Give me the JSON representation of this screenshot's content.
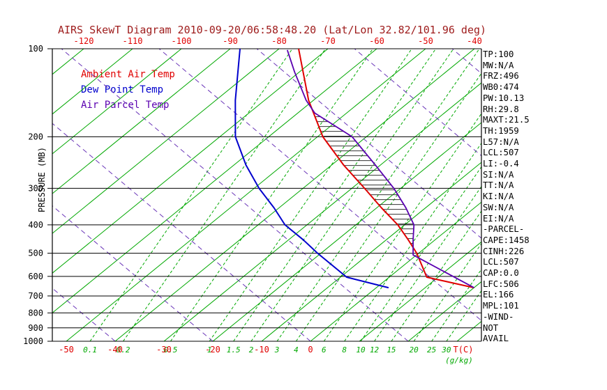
{
  "title": "AIRS SkewT Diagram 2010-09-20/06:58:48.20 (Lat/Lon 32.82/101.96 deg)",
  "colors": {
    "title": "#9e1b1b",
    "red": "#e00000",
    "green": "#00a800",
    "blue": "#0000cd",
    "purple": "#5a00b0",
    "purple_dashed": "#6a35b8",
    "hatch": "#333333",
    "black": "#000000"
  },
  "legend": {
    "ambient": "Ambient Air Temp",
    "dewpoint": "Dew Point Temp",
    "parcel": "Air Parcel Temp"
  },
  "axes": {
    "pressure_label": "PRESSURE (MB)",
    "pressure_ticks": [
      100,
      200,
      300,
      400,
      500,
      600,
      700,
      800,
      900,
      1000
    ],
    "top_temp_ticks": [
      -120,
      -110,
      -100,
      -90,
      -80,
      -70,
      -60,
      -50,
      -40
    ],
    "bottom_temp_ticks": [
      -50,
      -40,
      -30,
      -20,
      -10,
      0
    ],
    "temp_unit": "T(C)",
    "mixing_unit": "(g/kg)"
  },
  "stats": [
    "TP:100",
    "MW:N/A",
    "FRZ:496",
    "WB0:474",
    "PW:10.13",
    "RH:29.8",
    "MAXT:21.5",
    "TH:1959",
    "L57:N/A",
    "LCL:507",
    "LI:-0.4",
    "SI:N/A",
    "TT:N/A",
    "KI:N/A",
    "SW:N/A",
    "EI:N/A",
    "-PARCEL-",
    "CAPE:1458",
    "CINH:226",
    "LCL:507",
    "CAP:0.0",
    "LFC:506",
    "EL:166",
    "MPL:101",
    "-WIND-",
    "NOT",
    "AVAIL"
  ],
  "chart_data": {
    "type": "line",
    "x_axis": "Temperature (C), skewed isotherms",
    "y_axis": "Pressure (MB), log scale",
    "pressure_range_mb": [
      100,
      1000
    ],
    "top_axis_temp_range_c": [
      -120,
      -40
    ],
    "isotherms_c": {
      "min": -120,
      "max": 30,
      "step": 10
    },
    "mixing_ratio_lines_gkg": [
      0.1,
      0.2,
      0.5,
      1,
      1.5,
      2,
      3,
      4,
      6,
      8,
      10,
      12,
      15,
      20,
      25,
      30
    ],
    "dry_adiabat_surface_temps_c": {
      "min": -40,
      "max": 100,
      "step": 20
    },
    "series": [
      {
        "name": "Ambient Air Temp",
        "color_key": "red",
        "points_mb_c": [
          [
            656,
            20
          ],
          [
            604,
            7.7
          ],
          [
            500,
            -0.4
          ],
          [
            450,
            -5.5
          ],
          [
            400,
            -11.4
          ],
          [
            350,
            -19
          ],
          [
            300,
            -27.4
          ],
          [
            250,
            -37.5
          ],
          [
            200,
            -48.9
          ],
          [
            150,
            -61
          ],
          [
            100,
            -76
          ]
        ]
      },
      {
        "name": "Dew Point Temp",
        "color_key": "blue",
        "points_mb_c": [
          [
            656,
            2.5
          ],
          [
            604,
            -8.7
          ],
          [
            500,
            -20.7
          ],
          [
            450,
            -27
          ],
          [
            400,
            -34.5
          ],
          [
            350,
            -41
          ],
          [
            300,
            -49
          ],
          [
            250,
            -57.5
          ],
          [
            200,
            -66.8
          ],
          [
            150,
            -76
          ],
          [
            100,
            -88
          ]
        ]
      },
      {
        "name": "Air Parcel Temp",
        "color_key": "purple",
        "points_mb_c": [
          [
            656,
            20
          ],
          [
            507,
            -0.7
          ],
          [
            450,
            -4.5
          ],
          [
            400,
            -8.1
          ],
          [
            350,
            -14
          ],
          [
            300,
            -21.4
          ],
          [
            250,
            -31
          ],
          [
            200,
            -42.9
          ],
          [
            166,
            -56.5
          ],
          [
            150,
            -61.5
          ],
          [
            120,
            -71
          ],
          [
            101,
            -78
          ]
        ]
      }
    ],
    "cape_hatch_between_mb": [
      500,
      166
    ],
    "annotations": {
      "lcl_mb": 507,
      "lfc_mb": 506,
      "el_mb": 166,
      "mpl_mb": 101,
      "cape_jkg": 1458,
      "cinh_jkg": 226
    }
  }
}
